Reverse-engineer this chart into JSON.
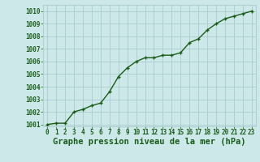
{
  "x": [
    0,
    1,
    2,
    3,
    4,
    5,
    6,
    7,
    8,
    9,
    10,
    11,
    12,
    13,
    14,
    15,
    16,
    17,
    18,
    19,
    20,
    21,
    22,
    23
  ],
  "y": [
    1001.0,
    1001.1,
    1001.1,
    1002.0,
    1002.2,
    1002.5,
    1002.7,
    1003.6,
    1004.8,
    1005.5,
    1006.0,
    1006.3,
    1006.3,
    1006.5,
    1006.5,
    1006.7,
    1007.5,
    1007.8,
    1008.5,
    1009.0,
    1009.4,
    1009.6,
    1009.8,
    1010.0
  ],
  "ylim_min": 1001.0,
  "ylim_max": 1010.5,
  "yticks": [
    1001,
    1002,
    1003,
    1004,
    1005,
    1006,
    1007,
    1008,
    1009,
    1010
  ],
  "xticks": [
    0,
    1,
    2,
    3,
    4,
    5,
    6,
    7,
    8,
    9,
    10,
    11,
    12,
    13,
    14,
    15,
    16,
    17,
    18,
    19,
    20,
    21,
    22,
    23
  ],
  "xlabel": "Graphe pression niveau de la mer (hPa)",
  "line_color": "#1a5c1a",
  "marker_color": "#1a5c1a",
  "bg_color": "#cce8e8",
  "grid_color": "#aacccc",
  "tick_label_color": "#1a5c1a",
  "xlabel_color": "#1a5c1a",
  "xlabel_fontsize": 7.5,
  "tick_fontsize": 5.5,
  "line_width": 1.0,
  "marker_size": 3.5
}
